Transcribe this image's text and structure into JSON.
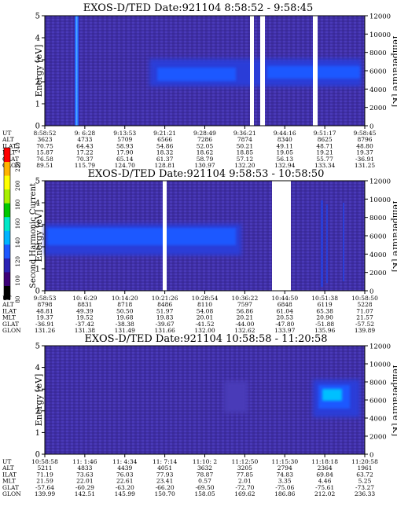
{
  "chart_data": [
    {
      "type": "heatmap",
      "title": "EXOS-D/TED   Date:921104   8:58:52 - 9:58:45",
      "ylabel": "Energy [eV]",
      "ylabel_right": "Temperature [K]",
      "ylim": [
        0,
        5
      ],
      "yticks": [
        "0",
        "1",
        "2",
        "3",
        "4",
        "5"
      ],
      "ylim_right": [
        0,
        12000
      ],
      "yticks_right": [
        "0",
        "2000",
        "4000",
        "6000",
        "8000",
        "10000",
        "12000"
      ],
      "row_labels": [
        "UT",
        "ALT",
        "ILAT",
        "MLT",
        "GLAT",
        "GLON"
      ],
      "columns": [
        [
          "8:58:52",
          "3623",
          "70.75",
          "15.87",
          "76.58",
          "89.51"
        ],
        [
          "9: 6:28",
          "4733",
          "64.43",
          "17.22",
          "70.37",
          "115.79"
        ],
        [
          "9:13:53",
          "5709",
          "58.93",
          "17.90",
          "65.14",
          "124.70"
        ],
        [
          "9:21:21",
          "6566",
          "54.86",
          "18.32",
          "61.37",
          "128.81"
        ],
        [
          "9:28:49",
          "7286",
          "52.05",
          "18.62",
          "58.79",
          "130.97"
        ],
        [
          "9:36:21",
          "7874",
          "50.21",
          "18.85",
          "57.12",
          "132.20"
        ],
        [
          "9:44:16",
          "8340",
          "49.11",
          "19.05",
          "56.13",
          "132.94"
        ],
        [
          "9:51:17",
          "8625",
          "48.71",
          "19.21",
          "55.77",
          "133.34"
        ],
        [
          "9:58:45",
          "8796",
          "48.80",
          "19.37",
          "-36.91",
          "131.25"
        ]
      ]
    },
    {
      "type": "heatmap",
      "title": "EXOS-D/TED   Date:921104   9:58:53 - 10:58:50",
      "ylabel": "Energy [eV]",
      "ylabel_right": "Temperature [K]",
      "ylim": [
        0,
        5
      ],
      "yticks": [
        "0",
        "1",
        "2",
        "3",
        "4",
        "5"
      ],
      "ylim_right": [
        0,
        12000
      ],
      "yticks_right": [
        "0",
        "2000",
        "4000",
        "6000",
        "8000",
        "10000",
        "12000"
      ],
      "row_labels": [
        "UT",
        "ALT",
        "ILAT",
        "MLT",
        "GLAT",
        "GLON"
      ],
      "columns": [
        [
          "9:58:53",
          "8798",
          "48.81",
          "19.37",
          "-36.91",
          "131.26"
        ],
        [
          "10: 6:29",
          "8831",
          "49.39",
          "19.52",
          "-37.42",
          "131.38"
        ],
        [
          "10:14:20",
          "8718",
          "50.50",
          "19.68",
          "-38.38",
          "131.49"
        ],
        [
          "10:21:26",
          "8486",
          "51.97",
          "19.83",
          "-39.67",
          "131.66"
        ],
        [
          "10:28:54",
          "8110",
          "54.08",
          "20.01",
          "-41.52",
          "132.00"
        ],
        [
          "10:36:22",
          "7597",
          "56.86",
          "20.21",
          "-44.00",
          "132.62"
        ],
        [
          "10:44:50",
          "6848",
          "61.04",
          "20.53",
          "-47.80",
          "133.97"
        ],
        [
          "10:51:38",
          "6119",
          "65.38",
          "20.90",
          "-51.88",
          "135.96"
        ],
        [
          "10:58:50",
          "5228",
          "71.07",
          "21.57",
          "-57.52",
          "139.89"
        ]
      ]
    },
    {
      "type": "heatmap",
      "title": "EXOS-D/TED   Date:921104   10:58:58 - 11:20:58",
      "ylabel": "Energy [eV]",
      "ylabel_right": "Temperature [K]",
      "ylim": [
        0,
        5
      ],
      "yticks": [
        "0",
        "1",
        "2",
        "3",
        "4",
        "5"
      ],
      "ylim_right": [
        0,
        12000
      ],
      "yticks_right": [
        "0",
        "2000",
        "4000",
        "6000",
        "8000",
        "10000",
        "12000"
      ],
      "row_labels": [
        "UT",
        "ALT",
        "ILAT",
        "MLT",
        "GLAT",
        "GLON"
      ],
      "columns": [
        [
          "10:58:58",
          "5211",
          "71.19",
          "21.59",
          "-57.64",
          "139.99"
        ],
        [
          "11: 1:46",
          "4833",
          "73.63",
          "22.01",
          "-60.29",
          "142.51"
        ],
        [
          "11: 4:34",
          "4439",
          "76.03",
          "22.61",
          "-63.20",
          "145.99"
        ],
        [
          "11: 7:14",
          "4051",
          "77.93",
          "23.41",
          "-66.20",
          "150.70"
        ],
        [
          "11:10: 2",
          "3632",
          "78.87",
          "0.57",
          "-69.50",
          "158.05"
        ],
        [
          "11:12:50",
          "3205",
          "77.85",
          "2.01",
          "-72.70",
          "169.62"
        ],
        [
          "11:15:30",
          "2794",
          "74.83",
          "3.35",
          "-75.06",
          "186.86"
        ],
        [
          "11:18:18",
          "2364",
          "69.84",
          "4.46",
          "-75.61",
          "212.02"
        ],
        [
          "11:20:58",
          "1961",
          "63.72",
          "5.25",
          "-73.27",
          "236.33"
        ]
      ]
    }
  ],
  "colorbar": {
    "label": "Second Harmonic Current",
    "ticks": [
      "80",
      "100",
      "120",
      "140",
      "160",
      "180",
      "200",
      "220",
      "240"
    ],
    "colors": [
      "#000000",
      "#3c0078",
      "#2a22b4",
      "#1e58ff",
      "#00b4ff",
      "#00e8c8",
      "#00c800",
      "#a8f000",
      "#ffff00",
      "#ffb400",
      "#ff0000"
    ]
  }
}
